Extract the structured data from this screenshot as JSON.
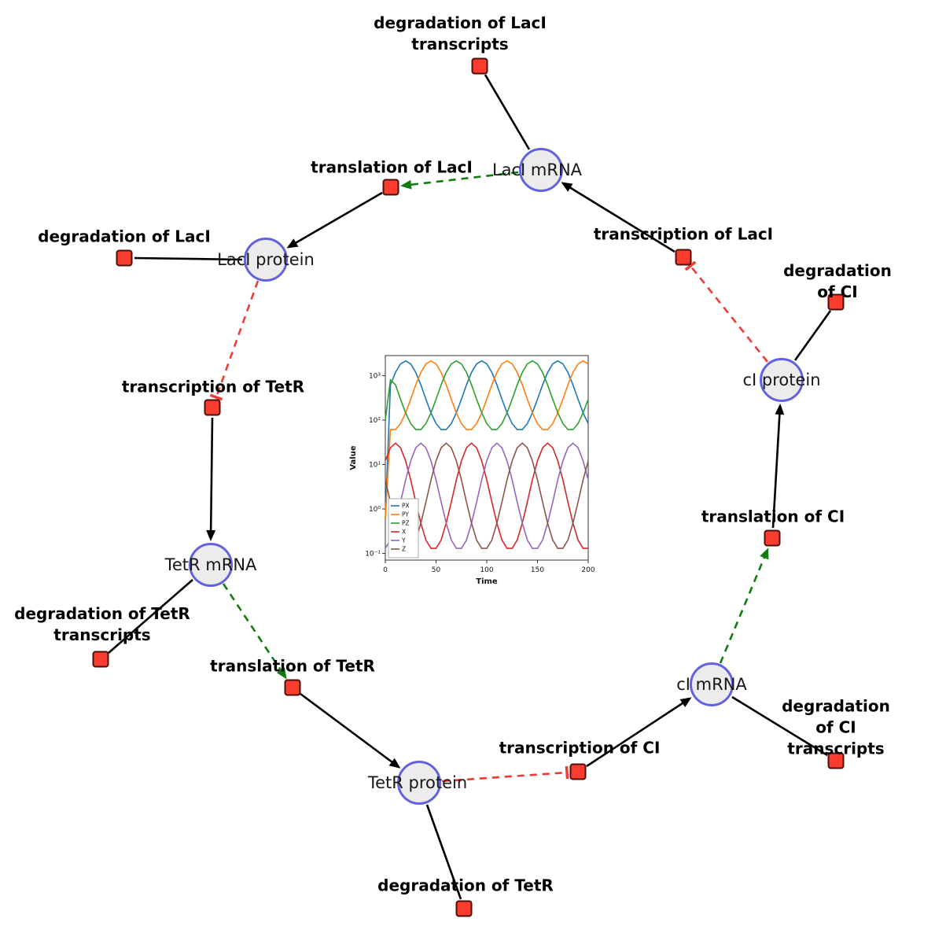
{
  "colors": {
    "background": "#ffffff",
    "species_fill": "#ececec",
    "species_stroke": "#6262e0",
    "reaction_fill": "#fa3c2e",
    "reaction_stroke": "#4d0f08",
    "edge_black": "#000000",
    "edge_activation": "#0e7c0e",
    "edge_inhibition": "#ef3b36"
  },
  "diagram": {
    "species": [
      {
        "id": "laci-mrna",
        "label": "LacI mRNA"
      },
      {
        "id": "laci-protein",
        "label": "LacI protein"
      },
      {
        "id": "tetr-mrna",
        "label": "TetR mRNA"
      },
      {
        "id": "tetr-protein",
        "label": "TetR protein"
      },
      {
        "id": "ci-mrna",
        "label": "cI mRNA"
      },
      {
        "id": "ci-protein",
        "label": "cI protein"
      }
    ],
    "reactions": [
      {
        "id": "degradation-of-laci-transcripts",
        "label": "degradation of LacI\ntranscripts"
      },
      {
        "id": "translation-of-laci",
        "label": "translation of LacI"
      },
      {
        "id": "transcription-of-laci",
        "label": "transcription of LacI"
      },
      {
        "id": "degradation-of-laci",
        "label": "degradation of LacI"
      },
      {
        "id": "transcription-of-tetr",
        "label": "transcription of TetR"
      },
      {
        "id": "degradation-of-ci",
        "label": "degradation of CI"
      },
      {
        "id": "degradation-of-tetr-transcripts",
        "label": "degradation of TetR\ntranscripts"
      },
      {
        "id": "translation-of-tetr",
        "label": "translation of TetR"
      },
      {
        "id": "translation-of-ci",
        "label": "translation of CI"
      },
      {
        "id": "transcription-of-ci",
        "label": "transcription of CI"
      },
      {
        "id": "degradation-of-ci-transcripts",
        "label": "degradation of CI\ntranscripts"
      },
      {
        "id": "degradation-of-tetr",
        "label": "degradation of TetR"
      }
    ]
  },
  "chart_data": {
    "type": "line",
    "title": "",
    "xlabel": "Time",
    "ylabel": "Value",
    "yscale": "log",
    "xlim": [
      0,
      200
    ],
    "xticks": [
      0,
      50,
      100,
      150,
      200
    ],
    "ylog_range": [
      -1.15,
      3.45
    ],
    "yticks": [
      {
        "exp": -1,
        "label": "10⁻¹"
      },
      {
        "exp": 0,
        "label": "10⁰"
      },
      {
        "exp": 1,
        "label": "10¹"
      },
      {
        "exp": 2,
        "label": "10²"
      },
      {
        "exp": 3,
        "label": "10³"
      }
    ],
    "legend_position": "lower left",
    "grid": false,
    "x": [
      0,
      5,
      10,
      15,
      20,
      25,
      30,
      35,
      40,
      45,
      50,
      55,
      60,
      65,
      70,
      75,
      80,
      85,
      90,
      95,
      100,
      105,
      110,
      115,
      120,
      125,
      130,
      135,
      140,
      145,
      150,
      155,
      160,
      165,
      170,
      175,
      180,
      185,
      190,
      195,
      200
    ],
    "series": [
      {
        "name": "PX",
        "color": "#1f77b4",
        "values": [
          0.6,
          618,
          1180,
          1832,
          2138,
          1832,
          1180,
          618,
          294,
          145,
          83,
          61,
          61,
          83,
          145,
          294,
          618,
          1180,
          1832,
          2138,
          1832,
          1180,
          618,
          294,
          145,
          83,
          61,
          61,
          83,
          145,
          294,
          618,
          1180,
          1832,
          2138,
          1832,
          1180,
          618,
          294,
          145,
          83
        ]
      },
      {
        "name": "PY",
        "color": "#ff7f0e",
        "values": [
          0.6,
          61,
          61,
          83,
          145,
          294,
          618,
          1180,
          1832,
          2138,
          1832,
          1180,
          618,
          294,
          145,
          83,
          61,
          61,
          83,
          145,
          294,
          618,
          1180,
          1832,
          2138,
          1832,
          1180,
          618,
          294,
          145,
          83,
          61,
          61,
          83,
          145,
          294,
          618,
          1180,
          1832,
          2138,
          1832
        ]
      },
      {
        "name": "PZ",
        "color": "#2ca02c",
        "values": [
          100,
          800,
          618,
          294,
          145,
          83,
          61,
          61,
          83,
          145,
          294,
          618,
          1180,
          1832,
          2138,
          1832,
          1180,
          618,
          294,
          145,
          83,
          61,
          61,
          83,
          145,
          294,
          618,
          1180,
          1832,
          2138,
          1832,
          1180,
          618,
          294,
          145,
          83,
          61,
          61,
          83,
          145,
          294
        ]
      },
      {
        "name": "X",
        "color": "#d62728",
        "values": [
          12.1,
          23.8,
          30.2,
          23.8,
          12.1,
          4.5,
          1.43,
          0.48,
          0.2,
          0.13,
          0.13,
          0.2,
          0.48,
          1.43,
          4.5,
          12.1,
          23.8,
          30.2,
          23.8,
          12.1,
          4.5,
          1.43,
          0.48,
          0.2,
          0.13,
          0.13,
          0.2,
          0.48,
          1.43,
          4.5,
          12.1,
          23.8,
          30.2,
          23.8,
          12.1,
          4.5,
          1.43,
          0.48,
          0.2,
          0.13,
          0.13
        ]
      },
      {
        "name": "Y",
        "color": "#9467bd",
        "values": [
          0.13,
          0.2,
          0.48,
          1.43,
          4.5,
          12.1,
          23.8,
          30.2,
          23.8,
          12.1,
          4.5,
          1.43,
          0.48,
          0.2,
          0.13,
          0.13,
          0.2,
          0.48,
          1.43,
          4.5,
          12.1,
          23.8,
          30.2,
          23.8,
          12.1,
          4.5,
          1.43,
          0.48,
          0.2,
          0.13,
          0.13,
          0.2,
          0.48,
          1.43,
          4.5,
          12.1,
          23.8,
          30.2,
          23.8,
          12.1,
          4.5
        ]
      },
      {
        "name": "Z",
        "color": "#8c564b",
        "values": [
          4.5,
          1.43,
          0.48,
          0.2,
          0.13,
          0.13,
          0.2,
          0.48,
          1.43,
          4.5,
          12.1,
          23.8,
          30.2,
          23.8,
          12.1,
          4.5,
          1.43,
          0.48,
          0.2,
          0.13,
          0.13,
          0.2,
          0.48,
          1.43,
          4.5,
          12.1,
          23.8,
          30.2,
          23.8,
          12.1,
          4.5,
          1.43,
          0.48,
          0.2,
          0.13,
          0.13,
          0.2,
          0.48,
          1.43,
          4.5,
          12.1
        ]
      }
    ]
  }
}
